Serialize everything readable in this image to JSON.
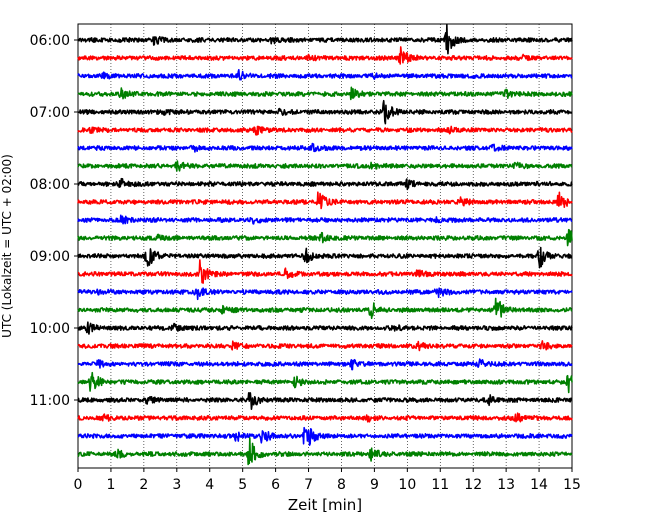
{
  "chart_data": {
    "type": "line",
    "title": "",
    "xlabel": "Zeit  [min]",
    "ylabel": "UTC (Lokalzeit = UTC + 02:00)",
    "xlim": [
      0,
      15
    ],
    "x_ticks": [
      0,
      1,
      2,
      3,
      4,
      5,
      6,
      7,
      8,
      9,
      10,
      11,
      12,
      13,
      14,
      15
    ],
    "y_tick_labels": [
      "06:00",
      "07:00",
      "08:00",
      "09:00",
      "10:00",
      "11:00"
    ],
    "grid": "vertical dotted",
    "legend": "none",
    "colors": [
      "#000000",
      "#ff0000",
      "#0000ff",
      "#008000"
    ],
    "traces": [
      {
        "start": "06:00",
        "events": [
          [
            2.3,
            0.25
          ],
          [
            5.9,
            0.2
          ],
          [
            11.2,
            1.0
          ]
        ]
      },
      {
        "start": "06:15",
        "events": [
          [
            9.8,
            0.75
          ],
          [
            7.0,
            0.2
          ],
          [
            13.5,
            0.15
          ]
        ]
      },
      {
        "start": "06:30",
        "events": [
          [
            4.9,
            0.35
          ],
          [
            0.8,
            0.15
          ],
          [
            9.0,
            0.15
          ]
        ]
      },
      {
        "start": "06:45",
        "events": [
          [
            1.3,
            0.35
          ],
          [
            8.3,
            0.35
          ],
          [
            13.0,
            0.2
          ]
        ]
      },
      {
        "start": "07:00",
        "events": [
          [
            9.3,
            0.85
          ],
          [
            2.6,
            0.15
          ],
          [
            6.1,
            0.15
          ]
        ]
      },
      {
        "start": "07:15",
        "events": [
          [
            5.4,
            0.25
          ],
          [
            0.4,
            0.15
          ],
          [
            11.3,
            0.15
          ]
        ]
      },
      {
        "start": "07:30",
        "events": [
          [
            7.1,
            0.25
          ],
          [
            12.6,
            0.15
          ],
          [
            3.5,
            0.15
          ]
        ]
      },
      {
        "start": "07:45",
        "events": [
          [
            3.0,
            0.3
          ],
          [
            8.9,
            0.2
          ],
          [
            13.3,
            0.15
          ]
        ]
      },
      {
        "start": "08:00",
        "events": [
          [
            1.3,
            0.3
          ],
          [
            10.0,
            0.25
          ],
          [
            14.0,
            0.15
          ]
        ]
      },
      {
        "start": "08:15",
        "events": [
          [
            7.3,
            0.75
          ],
          [
            14.6,
            0.55
          ],
          [
            11.6,
            0.2
          ]
        ]
      },
      {
        "start": "08:30",
        "events": [
          [
            1.3,
            0.25
          ],
          [
            5.3,
            0.2
          ],
          [
            10.9,
            0.15
          ]
        ]
      },
      {
        "start": "08:45",
        "events": [
          [
            7.4,
            0.25
          ],
          [
            14.9,
            0.75
          ],
          [
            2.4,
            0.15
          ]
        ]
      },
      {
        "start": "09:00",
        "events": [
          [
            2.1,
            0.95
          ],
          [
            6.9,
            0.5
          ],
          [
            14.0,
            0.8
          ]
        ]
      },
      {
        "start": "09:15",
        "events": [
          [
            3.7,
            1.0
          ],
          [
            6.3,
            0.25
          ],
          [
            10.3,
            0.2
          ]
        ]
      },
      {
        "start": "09:30",
        "events": [
          [
            3.6,
            0.45
          ],
          [
            10.9,
            0.35
          ],
          [
            0.6,
            0.15
          ]
        ]
      },
      {
        "start": "09:45",
        "events": [
          [
            8.9,
            0.5
          ],
          [
            12.7,
            0.8
          ],
          [
            4.4,
            0.25
          ]
        ]
      },
      {
        "start": "10:00",
        "events": [
          [
            0.3,
            0.3
          ],
          [
            2.9,
            0.2
          ],
          [
            9.6,
            0.15
          ]
        ]
      },
      {
        "start": "10:15",
        "events": [
          [
            4.7,
            0.2
          ],
          [
            10.3,
            0.25
          ],
          [
            14.1,
            0.2
          ]
        ]
      },
      {
        "start": "10:30",
        "events": [
          [
            8.3,
            0.3
          ],
          [
            12.2,
            0.25
          ],
          [
            0.6,
            0.2
          ]
        ]
      },
      {
        "start": "10:45",
        "events": [
          [
            0.4,
            0.75
          ],
          [
            14.9,
            0.6
          ],
          [
            6.6,
            0.3
          ]
        ]
      },
      {
        "start": "11:00",
        "events": [
          [
            5.2,
            0.65
          ],
          [
            12.5,
            0.25
          ],
          [
            2.1,
            0.15
          ]
        ]
      },
      {
        "start": "11:15",
        "events": [
          [
            13.3,
            0.3
          ],
          [
            0.8,
            0.15
          ],
          [
            8.8,
            0.15
          ]
        ]
      },
      {
        "start": "11:30",
        "events": [
          [
            5.6,
            0.5
          ],
          [
            6.9,
            1.2
          ],
          [
            4.8,
            0.3
          ]
        ]
      },
      {
        "start": "11:45",
        "events": [
          [
            5.2,
            1.0
          ],
          [
            8.9,
            0.35
          ],
          [
            1.2,
            0.2
          ]
        ]
      }
    ]
  }
}
